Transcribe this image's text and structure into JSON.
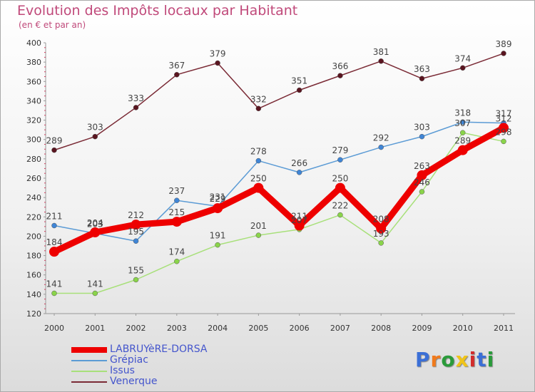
{
  "chart_data": {
    "type": "line",
    "title": "Evolution des Impôts locaux par Habitant",
    "subtitle": "(en € et par an)",
    "x": [
      "2000",
      "2001",
      "2002",
      "2003",
      "2004",
      "2005",
      "2006",
      "2007",
      "2008",
      "2009",
      "2010",
      "2011"
    ],
    "ylim": [
      120,
      400
    ],
    "yticks": [
      120,
      140,
      160,
      180,
      200,
      220,
      240,
      260,
      280,
      300,
      320,
      340,
      360,
      380,
      400
    ],
    "grid": false,
    "series": [
      {
        "name": "LABRUYèRE-DORSA",
        "color": "#ee0000",
        "values": [
          184,
          204,
          212,
          215,
          229,
          250,
          211,
          250,
          208,
          263,
          289,
          312
        ]
      },
      {
        "name": "Grépiac",
        "color": "#5b9bd5",
        "values": [
          211,
          203,
          195,
          237,
          231,
          278,
          266,
          279,
          292,
          303,
          318,
          317
        ]
      },
      {
        "name": "Issus",
        "color": "#a8e07a",
        "values": [
          141,
          141,
          155,
          174,
          191,
          201,
          207,
          222,
          193,
          246,
          307,
          298
        ]
      },
      {
        "name": "Venerque",
        "color": "#7a2a35",
        "values": [
          289,
          303,
          333,
          367,
          379,
          332,
          351,
          366,
          381,
          363,
          374,
          389
        ]
      }
    ],
    "data_labels": [
      [
        "184",
        "204",
        "212",
        "215",
        "229",
        "250",
        "211",
        "250",
        "208",
        "263",
        "289",
        "312"
      ],
      [
        "211",
        "203",
        "195",
        "237",
        "231",
        "278",
        "266",
        "279",
        "292",
        "303",
        "318",
        "317"
      ],
      [
        "141",
        "141",
        "155",
        "174",
        "191",
        "201",
        "207",
        "222",
        "193",
        "246",
        "307",
        "298"
      ],
      [
        "289",
        "303",
        "333",
        "367",
        "379",
        "332",
        "351",
        "366",
        "381",
        "363",
        "374",
        "389"
      ]
    ]
  },
  "logo": {
    "letters": [
      "P",
      "r",
      "o",
      "x",
      "i",
      "t",
      "i"
    ],
    "colors": [
      "#3b6fd6",
      "#f07a1c",
      "#2a9b3a",
      "#f0c419",
      "#d22c2c",
      "#3b6fd6",
      "#2a9b3a"
    ]
  }
}
